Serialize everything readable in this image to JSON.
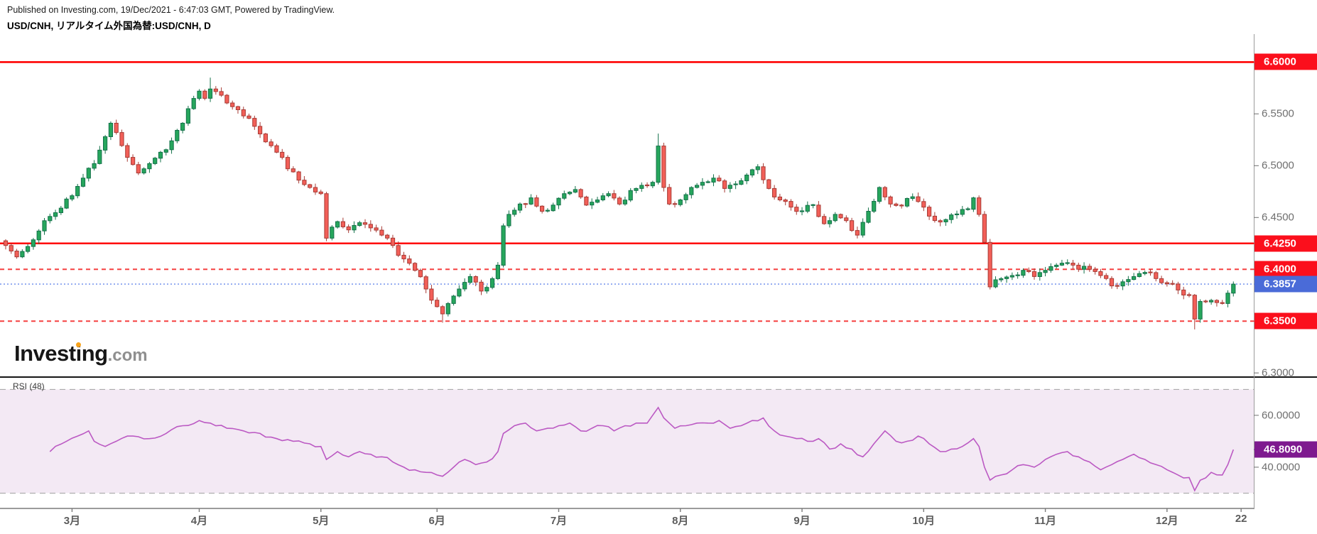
{
  "header": {
    "published": "Published on Investing.com, 19/Dec/2021 - 6:47:03 GMT, Powered by TradingView.",
    "symbol": "USD/CNH, リアルタイム外国為替:USD/CNH, D"
  },
  "watermark": {
    "brand_prefix": "Invest",
    "brand_dot_i": "i",
    "brand_suffix": "ng",
    "domain": ".com"
  },
  "colors": {
    "up_fill": "#26a65c",
    "up_stroke": "#14724a",
    "down_fill": "#f25f58",
    "down_stroke": "#a73b35",
    "level_red": "#ff0202",
    "dashed_red": "#f54040",
    "current_blue_line": "#7e9bee",
    "badge_red": "#fb0f1c",
    "badge_blue": "#4a6bd8",
    "badge_purple": "#7e1a8f",
    "rsi_line": "#bb59c3",
    "rsi_band_fill": "#f3e9f4",
    "band_dash": "#a2a2a2",
    "axis_text": "#6f6f6f",
    "month_text": "#5c5c5c",
    "axis_line": "#9b9b9b"
  },
  "chart_data": {
    "type": "candlestick",
    "symbol": "USD/CNH",
    "interval": "D",
    "legend": "price main panel + RSI sub panel, x axis late-Feb to Dec 22 (daily bars)",
    "main_panel": {
      "ylim": [
        6.296,
        6.627
      ],
      "y_ticks": [
        {
          "label": "6.5500",
          "value": 6.55
        },
        {
          "label": "6.5000",
          "value": 6.5
        },
        {
          "label": "6.4500",
          "value": 6.45
        },
        {
          "label": "6.3000",
          "value": 6.3
        }
      ],
      "price_line_badges": [
        {
          "label": "6.6000",
          "value": 6.6,
          "bg": "badge_red",
          "name": "level-6.6000"
        },
        {
          "label": "6.4250",
          "value": 6.425,
          "bg": "badge_red",
          "name": "level-6.4250"
        },
        {
          "label": "6.4000",
          "value": 6.4,
          "bg": "badge_red",
          "name": "level-6.4000"
        },
        {
          "label": "6.3857",
          "value": 6.3857,
          "bg": "badge_blue",
          "name": "current-price"
        },
        {
          "label": "6.3500",
          "value": 6.35,
          "bg": "badge_red",
          "name": "level-6.3500"
        }
      ],
      "price_lines": [
        {
          "value": 6.6,
          "style": "solid"
        },
        {
          "value": 6.425,
          "style": "solid"
        },
        {
          "value": 6.4,
          "style": "dashed"
        },
        {
          "value": 6.35,
          "style": "dashed"
        },
        {
          "value": 6.3857,
          "style": "dotted-blue"
        }
      ],
      "last_price": 6.3857,
      "price_anchors": [
        [
          0,
          6.423
        ],
        [
          2,
          6.412
        ],
        [
          4,
          6.422
        ],
        [
          6,
          6.437
        ],
        [
          8,
          6.451
        ],
        [
          10,
          6.459
        ],
        [
          12,
          6.471
        ],
        [
          14,
          6.488
        ],
        [
          16,
          6.502
        ],
        [
          18,
          6.528
        ],
        [
          19,
          6.541
        ],
        [
          20,
          6.532
        ],
        [
          22,
          6.508
        ],
        [
          24,
          6.493
        ],
        [
          26,
          6.502
        ],
        [
          28,
          6.513
        ],
        [
          30,
          6.524
        ],
        [
          32,
          6.541
        ],
        [
          33,
          6.555
        ],
        [
          35,
          6.572
        ],
        [
          36,
          6.565
        ],
        [
          37,
          6.574
        ],
        [
          39,
          6.568
        ],
        [
          41,
          6.557
        ],
        [
          43,
          6.548
        ],
        [
          45,
          6.538
        ],
        [
          47,
          6.523
        ],
        [
          49,
          6.513
        ],
        [
          51,
          6.497
        ],
        [
          53,
          6.486
        ],
        [
          55,
          6.479
        ],
        [
          57,
          6.473
        ],
        [
          58,
          6.43
        ],
        [
          60,
          6.446
        ],
        [
          62,
          6.438
        ],
        [
          64,
          6.445
        ],
        [
          66,
          6.44
        ],
        [
          68,
          6.433
        ],
        [
          70,
          6.423
        ],
        [
          72,
          6.41
        ],
        [
          74,
          6.399
        ],
        [
          76,
          6.381
        ],
        [
          78,
          6.364
        ],
        [
          79,
          6.357
        ],
        [
          80,
          6.367
        ],
        [
          82,
          6.381
        ],
        [
          84,
          6.393
        ],
        [
          86,
          6.379
        ],
        [
          88,
          6.391
        ],
        [
          89,
          6.404
        ],
        [
          90,
          6.442
        ],
        [
          91,
          6.453
        ],
        [
          93,
          6.463
        ],
        [
          95,
          6.469
        ],
        [
          97,
          6.456
        ],
        [
          99,
          6.462
        ],
        [
          101,
          6.473
        ],
        [
          103,
          6.477
        ],
        [
          105,
          6.462
        ],
        [
          107,
          6.467
        ],
        [
          109,
          6.473
        ],
        [
          111,
          6.463
        ],
        [
          113,
          6.476
        ],
        [
          115,
          6.481
        ],
        [
          117,
          6.484
        ],
        [
          118,
          6.519
        ],
        [
          119,
          6.479
        ],
        [
          120,
          6.463
        ],
        [
          122,
          6.467
        ],
        [
          124,
          6.479
        ],
        [
          126,
          6.484
        ],
        [
          128,
          6.488
        ],
        [
          130,
          6.478
        ],
        [
          132,
          6.482
        ],
        [
          134,
          6.491
        ],
        [
          136,
          6.499
        ],
        [
          138,
          6.478
        ],
        [
          140,
          6.467
        ],
        [
          142,
          6.46
        ],
        [
          144,
          6.456
        ],
        [
          146,
          6.462
        ],
        [
          148,
          6.444
        ],
        [
          150,
          6.453
        ],
        [
          152,
          6.447
        ],
        [
          154,
          6.433
        ],
        [
          156,
          6.456
        ],
        [
          158,
          6.479
        ],
        [
          160,
          6.463
        ],
        [
          162,
          6.461
        ],
        [
          164,
          6.47
        ],
        [
          166,
          6.46
        ],
        [
          168,
          6.447
        ],
        [
          170,
          6.448
        ],
        [
          172,
          6.453
        ],
        [
          174,
          6.458
        ],
        [
          175,
          6.469
        ],
        [
          176,
          6.453
        ],
        [
          177,
          6.426
        ],
        [
          178,
          6.383
        ],
        [
          180,
          6.391
        ],
        [
          182,
          6.394
        ],
        [
          184,
          6.399
        ],
        [
          186,
          6.393
        ],
        [
          188,
          6.399
        ],
        [
          190,
          6.404
        ],
        [
          192,
          6.406
        ],
        [
          194,
          6.4
        ],
        [
          196,
          6.4
        ],
        [
          198,
          6.394
        ],
        [
          200,
          6.384
        ],
        [
          202,
          6.388
        ],
        [
          204,
          6.393
        ],
        [
          206,
          6.397
        ],
        [
          208,
          6.391
        ],
        [
          210,
          6.386
        ],
        [
          212,
          6.38
        ],
        [
          214,
          6.375
        ],
        [
          215,
          6.352
        ],
        [
          216,
          6.369
        ],
        [
          218,
          6.37
        ],
        [
          220,
          6.367
        ],
        [
          221,
          6.377
        ],
        [
          222,
          6.3857
        ]
      ],
      "wick_events": [
        {
          "day": 37,
          "high": 6.585
        },
        {
          "day": 79,
          "low": 6.3485
        },
        {
          "day": 118,
          "high": 6.531
        },
        {
          "day": 215,
          "low": 6.342
        }
      ]
    },
    "rsi_panel": {
      "label": "RSI (48)",
      "ylim": [
        24.1,
        74.2
      ],
      "band": [
        30,
        70
      ],
      "y_ticks": [
        {
          "label": "60.0000",
          "value": 60
        },
        {
          "label": "40.0000",
          "value": 40
        }
      ],
      "value_badge": {
        "label": "46.8090",
        "value": 46.809
      },
      "rsi_anchors": [
        [
          8,
          46
        ],
        [
          11,
          50
        ],
        [
          13,
          52
        ],
        [
          15,
          54
        ],
        [
          16,
          50
        ],
        [
          18,
          48
        ],
        [
          20,
          50
        ],
        [
          23,
          52
        ],
        [
          26,
          51
        ],
        [
          29,
          53
        ],
        [
          32,
          56
        ],
        [
          35,
          58
        ],
        [
          37,
          57
        ],
        [
          40,
          55
        ],
        [
          43,
          54
        ],
        [
          46,
          53
        ],
        [
          49,
          51
        ],
        [
          52,
          50
        ],
        [
          55,
          49
        ],
        [
          57,
          48
        ],
        [
          58,
          43
        ],
        [
          60,
          46
        ],
        [
          62,
          44
        ],
        [
          64,
          46
        ],
        [
          66,
          45
        ],
        [
          68,
          44
        ],
        [
          70,
          42
        ],
        [
          72,
          40
        ],
        [
          74,
          39
        ],
        [
          76,
          38
        ],
        [
          78,
          37
        ],
        [
          79,
          36.5
        ],
        [
          81,
          40
        ],
        [
          83,
          43
        ],
        [
          85,
          41
        ],
        [
          87,
          42
        ],
        [
          89,
          46
        ],
        [
          90,
          53
        ],
        [
          92,
          56
        ],
        [
          94,
          57
        ],
        [
          96,
          54
        ],
        [
          98,
          55
        ],
        [
          100,
          56
        ],
        [
          102,
          57
        ],
        [
          104,
          54
        ],
        [
          106,
          55
        ],
        [
          108,
          56
        ],
        [
          110,
          54
        ],
        [
          112,
          56
        ],
        [
          114,
          57
        ],
        [
          116,
          57
        ],
        [
          118,
          63
        ],
        [
          119,
          59
        ],
        [
          121,
          55
        ],
        [
          123,
          56
        ],
        [
          125,
          57
        ],
        [
          127,
          57
        ],
        [
          129,
          58
        ],
        [
          131,
          55
        ],
        [
          133,
          56
        ],
        [
          135,
          58
        ],
        [
          137,
          59
        ],
        [
          139,
          54
        ],
        [
          141,
          52
        ],
        [
          143,
          51
        ],
        [
          145,
          50
        ],
        [
          147,
          51
        ],
        [
          149,
          47
        ],
        [
          151,
          49
        ],
        [
          153,
          47
        ],
        [
          155,
          44
        ],
        [
          157,
          49
        ],
        [
          159,
          54
        ],
        [
          161,
          50
        ],
        [
          163,
          50
        ],
        [
          165,
          52
        ],
        [
          167,
          49
        ],
        [
          169,
          46
        ],
        [
          171,
          47
        ],
        [
          173,
          48
        ],
        [
          175,
          51
        ],
        [
          176,
          48
        ],
        [
          177,
          40
        ],
        [
          178,
          35
        ],
        [
          180,
          37
        ],
        [
          182,
          39
        ],
        [
          184,
          41
        ],
        [
          186,
          40
        ],
        [
          188,
          43
        ],
        [
          190,
          45
        ],
        [
          192,
          46
        ],
        [
          194,
          44
        ],
        [
          196,
          42
        ],
        [
          198,
          39
        ],
        [
          200,
          41
        ],
        [
          202,
          43
        ],
        [
          204,
          45
        ],
        [
          206,
          43
        ],
        [
          208,
          41
        ],
        [
          210,
          39
        ],
        [
          212,
          37
        ],
        [
          214,
          36
        ],
        [
          215,
          31
        ],
        [
          216,
          35
        ],
        [
          218,
          38
        ],
        [
          220,
          37
        ],
        [
          221,
          41
        ],
        [
          222,
          46.8
        ]
      ]
    },
    "x_axis": {
      "ticks": [
        {
          "label": "3月",
          "day": 12
        },
        {
          "label": "4月",
          "day": 35
        },
        {
          "label": "5月",
          "day": 57
        },
        {
          "label": "6月",
          "day": 78
        },
        {
          "label": "7月",
          "day": 100
        },
        {
          "label": "8月",
          "day": 122
        },
        {
          "label": "9月",
          "day": 144
        },
        {
          "label": "10月",
          "day": 166
        },
        {
          "label": "11月",
          "day": 188
        },
        {
          "label": "12月",
          "day": 210
        },
        {
          "label": "22",
          "day": 223.4
        }
      ]
    }
  }
}
